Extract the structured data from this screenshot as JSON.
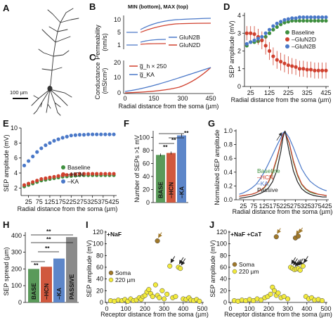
{
  "panels": {
    "A": {
      "label": "A",
      "scalebar": "100 µm"
    },
    "B": {
      "label": "B",
      "note": "MIN (bottom), MAX (top)",
      "ylabel_line1": "Permeability",
      "ylabel_line2": "(nm/s)",
      "yticks": [
        "10",
        "5",
        "1"
      ],
      "legend": [
        "GluN2B",
        "GluN2D"
      ]
    },
    "C": {
      "label": "C",
      "ylabel_line1": "Conductance",
      "ylabel_line2": "(mS/cm²)",
      "yticks": [
        "20",
        "10",
        "0"
      ],
      "xticks": [
        "0",
        "150",
        "300",
        "450"
      ],
      "xlabel": "Radial distance from the soma (µm)",
      "legend": [
        "g̅_h × 250",
        "g̅_KA"
      ]
    },
    "D": {
      "label": "D",
      "ylabel": "SEP amplitude (mV)",
      "yticks": [
        "0",
        "1",
        "2",
        "3",
        "4"
      ],
      "xticks": [
        "25",
        "125",
        "225",
        "325",
        "425"
      ],
      "xlabel": "Radial distance from the soma (µm)",
      "legend": [
        "Baseline",
        "–GluN2D",
        "–GluN2B"
      ]
    },
    "E": {
      "label": "E",
      "ylabel": "SEP amplitude (mV)",
      "yticks": [
        "2",
        "4",
        "6",
        "8",
        "10"
      ],
      "xticks": [
        "25",
        "75",
        "125",
        "175",
        "225",
        "275",
        "325",
        "375",
        "425"
      ],
      "xlabel": "Radial distance from the soma (µm)",
      "legend": [
        "Baseline",
        "–HCN",
        "–KA"
      ]
    },
    "F": {
      "label": "F",
      "ylabel": "Number of SEPs >1 mV",
      "yticks": [
        "0",
        "20",
        "40",
        "60",
        "80",
        "100"
      ],
      "bars": [
        "BASE",
        "–HCN",
        "–KA"
      ],
      "sig": [
        "**",
        "**",
        "**"
      ]
    },
    "G": {
      "label": "G",
      "ylabel": "Normalized SEP amplitude",
      "yticks": [
        "0.0",
        "0.2",
        "0.4",
        "0.6",
        "0.8",
        "1.0"
      ],
      "xticks": [
        "25",
        "75",
        "125",
        "175",
        "225",
        "275",
        "325",
        "375",
        "425"
      ],
      "xlabel": "Radial distance from the soma (µm)",
      "legend": [
        "Baseline",
        "–HCN",
        "–KA",
        "Passive"
      ]
    },
    "H": {
      "label": "H",
      "ylabel": "SEP spread (µm)",
      "yticks": [
        "0",
        "100",
        "200",
        "300",
        "400"
      ],
      "bars": [
        "BASE",
        "–HCN",
        "–KA",
        "PASSIVE"
      ],
      "sig": [
        "**",
        "**",
        "**",
        "**"
      ]
    },
    "I": {
      "label": "I",
      "note": "+NaF",
      "ylabel": "SEP amplitude (mV)",
      "yticks": [
        "0",
        "20",
        "40",
        "60",
        "80",
        "100",
        "120"
      ],
      "xticks": [
        "0",
        "100",
        "200",
        "300",
        "400",
        "500"
      ],
      "xlabel": "Receptor distance from the soma (µm)",
      "legend": [
        "Soma",
        "220 µm"
      ]
    },
    "J": {
      "label": "J",
      "note": "+NaF +CaT",
      "ylabel": "SEP amplitude (mV)",
      "yticks": [
        "0",
        "20",
        "40",
        "60",
        "80",
        "100",
        "120"
      ],
      "xticks": [
        "0",
        "100",
        "200",
        "300",
        "400",
        "500"
      ],
      "xlabel": "Receptor distance from the soma (µm)",
      "legend": [
        "Soma",
        "220 µm"
      ]
    }
  },
  "colors": {
    "green": "#3f8f3f",
    "red": "#d0402e",
    "blue": "#4a78c8",
    "black": "#222222",
    "brown": "#a0782a",
    "yellow": "#f2ea3c",
    "bar_green": "#5a9a5a",
    "bar_red": "#d0583e",
    "bar_blue": "#5d86c9",
    "bar_gray": "#8a8a8a"
  },
  "chart_data": [
    {
      "panel": "D",
      "type": "scatter",
      "xlim": [
        0,
        425
      ],
      "ylim": [
        0,
        4
      ],
      "x": [
        5,
        25,
        45,
        65,
        85,
        105,
        125,
        145,
        165,
        185,
        205,
        225,
        245,
        265,
        285,
        305,
        325,
        345,
        365,
        385,
        405,
        425
      ],
      "series": [
        {
          "name": "Baseline",
          "values": [
            2.3,
            2.5,
            2.5,
            2.55,
            2.6,
            2.8,
            3.0,
            3.2,
            3.35,
            3.5,
            3.6,
            3.65,
            3.7,
            3.7,
            3.7,
            3.7,
            3.7,
            3.7,
            3.7,
            3.7,
            3.7,
            3.7
          ]
        },
        {
          "name": "–GluN2D",
          "values": [
            3.0,
            3.0,
            2.95,
            2.8,
            2.6,
            2.3,
            2.0,
            1.7,
            1.5,
            1.4,
            1.3,
            1.2,
            1.15,
            1.1,
            1.0,
            1.0,
            0.95,
            0.95,
            0.9,
            0.9,
            0.9,
            0.9
          ],
          "err": [
            0.4,
            0.4,
            0.45,
            0.45,
            0.5,
            0.5,
            0.5,
            0.5,
            0.5,
            0.5,
            0.5,
            0.5,
            0.45,
            0.45,
            0.45,
            0.45,
            0.45,
            0.45,
            0.45,
            0.45,
            0.45,
            0.45
          ]
        },
        {
          "name": "–GluN2B",
          "values": [
            2.4,
            2.5,
            2.6,
            2.7,
            2.8,
            3.0,
            3.2,
            3.4,
            3.55,
            3.65,
            3.75,
            3.8,
            3.85,
            3.85,
            3.9,
            3.9,
            3.9,
            3.9,
            3.9,
            3.9,
            3.9,
            3.9
          ]
        }
      ]
    },
    {
      "panel": "E",
      "type": "scatter",
      "xlim": [
        0,
        425
      ],
      "ylim": [
        1,
        10
      ],
      "x": [
        5,
        25,
        45,
        65,
        85,
        105,
        125,
        145,
        165,
        185,
        205,
        225,
        245,
        265,
        285,
        305,
        325,
        345,
        365,
        385,
        405,
        425
      ],
      "series": [
        {
          "name": "Baseline",
          "values": [
            2.2,
            2.4,
            2.6,
            2.8,
            3.0,
            3.1,
            3.2,
            3.3,
            3.4,
            3.5,
            3.55,
            3.6,
            3.65,
            3.7,
            3.7,
            3.7,
            3.7,
            3.7,
            3.7,
            3.7,
            3.7,
            3.7
          ]
        },
        {
          "name": "–HCN",
          "values": [
            2.4,
            2.6,
            2.8,
            3.0,
            3.2,
            3.3,
            3.4,
            3.5,
            3.6,
            3.7,
            3.75,
            3.8,
            3.85,
            3.9,
            3.9,
            3.9,
            3.9,
            3.9,
            3.9,
            3.9,
            3.9,
            3.9
          ]
        },
        {
          "name": "–KA",
          "values": [
            5.0,
            5.6,
            6.2,
            6.8,
            7.3,
            7.7,
            8.0,
            8.3,
            8.5,
            8.7,
            8.85,
            9.0,
            9.05,
            9.1,
            9.1,
            9.15,
            9.15,
            9.15,
            9.15,
            9.15,
            9.15,
            9.15
          ]
        }
      ]
    },
    {
      "panel": "F",
      "type": "bar",
      "categories": [
        "BASE",
        "–HCN",
        "–KA"
      ],
      "values": [
        73,
        76,
        103
      ],
      "ylim": [
        0,
        110
      ]
    },
    {
      "panel": "G",
      "type": "line",
      "xlim": [
        0,
        425
      ],
      "ylim": [
        0,
        1
      ],
      "x": [
        5,
        25,
        45,
        65,
        85,
        105,
        125,
        145,
        165,
        185,
        205,
        215,
        225,
        245,
        265,
        285,
        305,
        325,
        345,
        365,
        385,
        405,
        425
      ],
      "series": [
        {
          "name": "Baseline",
          "values": [
            0.05,
            0.06,
            0.07,
            0.08,
            0.1,
            0.13,
            0.17,
            0.25,
            0.38,
            0.58,
            0.82,
            0.95,
            0.98,
            0.82,
            0.55,
            0.35,
            0.22,
            0.15,
            0.11,
            0.09,
            0.08,
            0.07,
            0.06
          ]
        },
        {
          "name": "–HCN",
          "values": [
            0.05,
            0.06,
            0.07,
            0.08,
            0.1,
            0.13,
            0.18,
            0.26,
            0.4,
            0.6,
            0.83,
            0.95,
            0.98,
            0.83,
            0.57,
            0.37,
            0.23,
            0.16,
            0.12,
            0.1,
            0.08,
            0.07,
            0.06
          ]
        },
        {
          "name": "–KA",
          "values": [
            0.08,
            0.1,
            0.13,
            0.17,
            0.22,
            0.3,
            0.4,
            0.52,
            0.65,
            0.78,
            0.9,
            0.97,
            0.99,
            0.9,
            0.76,
            0.6,
            0.45,
            0.35,
            0.27,
            0.22,
            0.18,
            0.15,
            0.13
          ]
        },
        {
          "name": "Passive",
          "values": [
            0.02,
            0.03,
            0.04,
            0.05,
            0.07,
            0.09,
            0.12,
            0.17,
            0.26,
            0.42,
            0.7,
            0.9,
            1.0,
            0.7,
            0.42,
            0.26,
            0.16,
            0.11,
            0.08,
            0.06,
            0.05,
            0.04,
            0.04
          ]
        }
      ]
    },
    {
      "panel": "H",
      "type": "bar",
      "categories": [
        "BASE",
        "–HCN",
        "–KA",
        "PASSIVE"
      ],
      "values": [
        200,
        213,
        262,
        390
      ],
      "ylim": [
        0,
        420
      ]
    },
    {
      "panel": "I",
      "type": "scatter",
      "xlim": [
        0,
        500
      ],
      "ylim": [
        0,
        120
      ],
      "series": [
        {
          "name": "Soma",
          "points": [
            [
              265,
              105
            ]
          ]
        },
        {
          "name": "220 µm",
          "points": [
            [
              20,
              3
            ],
            [
              40,
              2
            ],
            [
              60,
              4
            ],
            [
              80,
              3
            ],
            [
              95,
              5
            ],
            [
              110,
              2
            ],
            [
              125,
              6
            ],
            [
              140,
              3
            ],
            [
              155,
              4
            ],
            [
              170,
              8
            ],
            [
              180,
              5
            ],
            [
              190,
              10
            ],
            [
              200,
              12
            ],
            [
              210,
              18
            ],
            [
              220,
              22
            ],
            [
              230,
              15
            ],
            [
              240,
              10
            ],
            [
              255,
              30
            ],
            [
              265,
              12
            ],
            [
              275,
              8
            ],
            [
              290,
              20
            ],
            [
              300,
              6
            ],
            [
              315,
              14
            ],
            [
              330,
              62
            ],
            [
              345,
              8
            ],
            [
              360,
              10
            ],
            [
              375,
              60
            ],
            [
              385,
              58
            ],
            [
              400,
              6
            ],
            [
              415,
              5
            ],
            [
              430,
              8
            ],
            [
              440,
              4
            ],
            [
              455,
              3
            ],
            [
              470,
              5
            ],
            [
              485,
              2
            ]
          ]
        }
      ]
    },
    {
      "panel": "J",
      "type": "scatter",
      "xlim": [
        0,
        500
      ],
      "ylim": [
        0,
        120
      ],
      "series": [
        {
          "name": "Soma",
          "points": [
            [
              240,
              112
            ],
            [
              340,
              110
            ],
            [
              355,
              113
            ]
          ]
        },
        {
          "name": "220 µm",
          "points": [
            [
              20,
              3
            ],
            [
              40,
              2
            ],
            [
              60,
              4
            ],
            [
              80,
              3
            ],
            [
              100,
              5
            ],
            [
              120,
              3
            ],
            [
              140,
              6
            ],
            [
              160,
              4
            ],
            [
              180,
              8
            ],
            [
              195,
              10
            ],
            [
              210,
              14
            ],
            [
              220,
              26
            ],
            [
              230,
              20
            ],
            [
              240,
              12
            ],
            [
              250,
              16
            ],
            [
              265,
              8
            ],
            [
              280,
              10
            ],
            [
              300,
              6
            ],
            [
              315,
              60
            ],
            [
              325,
              58
            ],
            [
              335,
              56
            ],
            [
              345,
              57
            ],
            [
              355,
              58
            ],
            [
              365,
              55
            ],
            [
              380,
              62
            ],
            [
              395,
              10
            ],
            [
              410,
              6
            ],
            [
              425,
              8
            ],
            [
              440,
              4
            ],
            [
              460,
              5
            ],
            [
              480,
              3
            ]
          ]
        }
      ]
    }
  ]
}
